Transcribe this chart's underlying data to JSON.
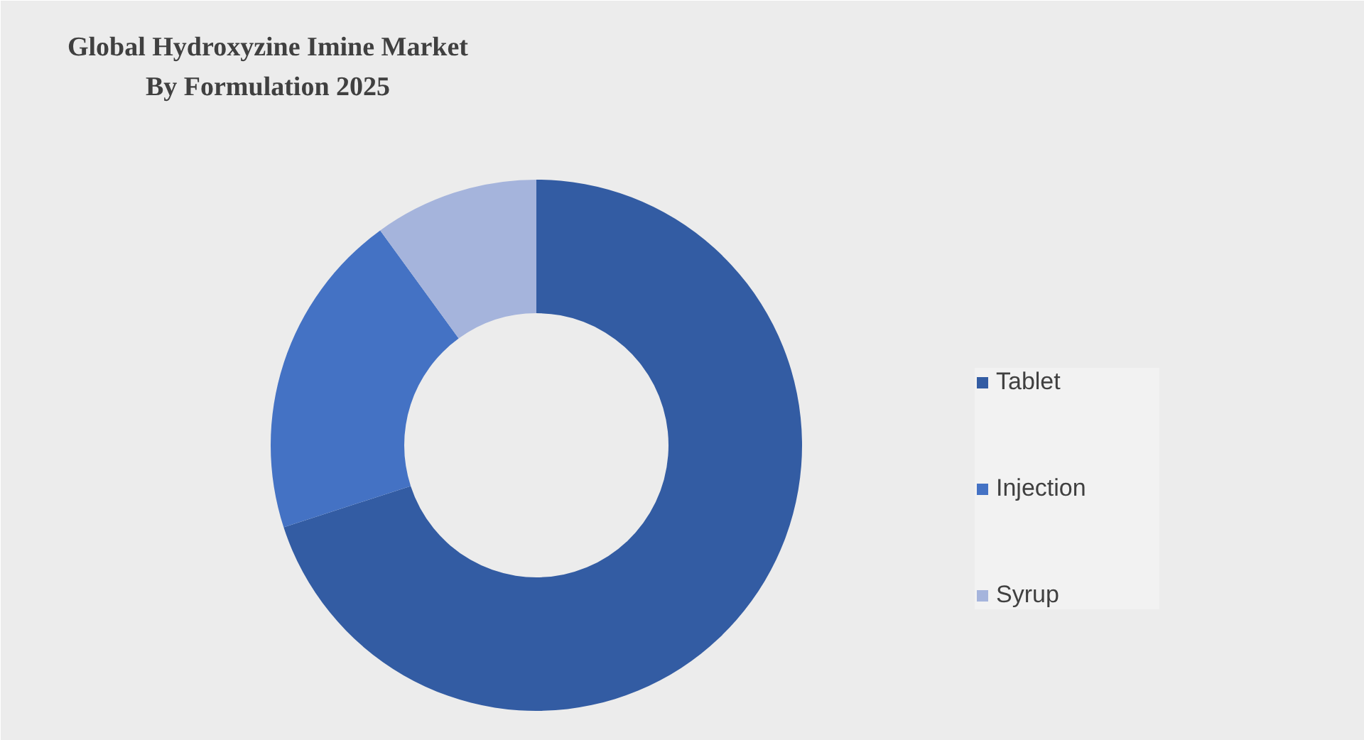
{
  "chart_data": {
    "type": "donut",
    "title": "Global Hydroxyzine Imine Market\nBy Formulation 2025",
    "categories": [
      "Tablet",
      "Injection",
      "Syrup"
    ],
    "values": [
      70,
      20,
      10
    ],
    "colors": [
      "#335ca3",
      "#4472c4",
      "#a5b4dc"
    ],
    "legend": "right"
  }
}
